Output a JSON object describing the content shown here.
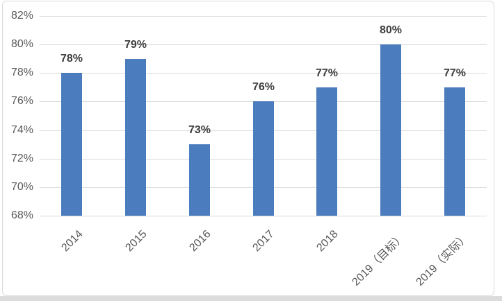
{
  "chart_data": {
    "type": "bar",
    "title": "",
    "xlabel": "",
    "ylabel": "",
    "categories": [
      "2014",
      "2015",
      "2016",
      "2017",
      "2018",
      "2019（目标）",
      "2019（实际）"
    ],
    "values": [
      78,
      79,
      73,
      76,
      77,
      80,
      77
    ],
    "data_labels": [
      "78%",
      "79%",
      "73%",
      "76%",
      "77%",
      "80%",
      "77%"
    ],
    "ylim": [
      68,
      82
    ],
    "ytick_step": 2,
    "ytick_labels": [
      "68%",
      "70%",
      "72%",
      "74%",
      "76%",
      "78%",
      "80%",
      "82%"
    ],
    "grid": true,
    "legend": false,
    "x_label_rotation_deg": -45,
    "colors": {
      "bar": "#4b7cbd",
      "gridline": "#d9d9d9",
      "tick_label": "#595959",
      "data_label": "#3d3d3d",
      "frame_border": "#d9d9d9",
      "background": "#ffffff"
    }
  }
}
